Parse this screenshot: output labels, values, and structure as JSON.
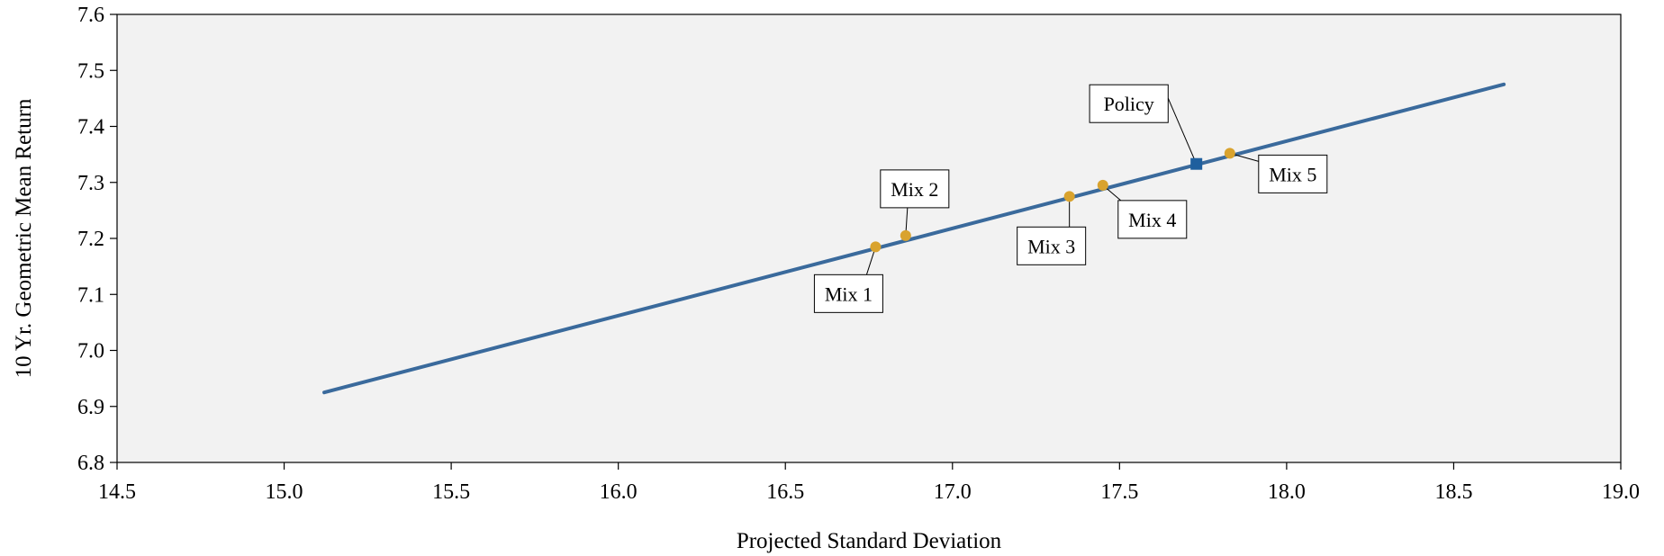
{
  "chart_data": {
    "type": "scatter",
    "title": "",
    "xlabel": "Projected Standard Deviation",
    "ylabel": "10 Yr. Geometric Mean Return",
    "xlim": [
      14.5,
      19.0
    ],
    "ylim": [
      6.8,
      7.6
    ],
    "x_ticks": [
      "14.5",
      "15.0",
      "15.5",
      "16.0",
      "16.5",
      "17.0",
      "17.5",
      "18.0",
      "18.5",
      "19.0"
    ],
    "y_ticks": [
      "6.8",
      "6.9",
      "7.0",
      "7.1",
      "7.2",
      "7.3",
      "7.4",
      "7.5",
      "7.6"
    ],
    "grid": false,
    "colors": {
      "plot_background": "#f2f2f2",
      "frontier_line": "#3a6a9c",
      "mix_marker": "#d9a32e",
      "policy_marker": "#1f5f9e"
    },
    "frontier_line": {
      "x": [
        15.12,
        18.65
      ],
      "y": [
        6.925,
        7.475
      ]
    },
    "points": [
      {
        "label": "Mix 1",
        "x": 16.77,
        "y": 7.185,
        "kind": "mix"
      },
      {
        "label": "Mix 2",
        "x": 16.86,
        "y": 7.205,
        "kind": "mix"
      },
      {
        "label": "Mix 3",
        "x": 17.35,
        "y": 7.275,
        "kind": "mix"
      },
      {
        "label": "Mix 4",
        "x": 17.45,
        "y": 7.295,
        "kind": "mix"
      },
      {
        "label": "Policy",
        "x": 17.73,
        "y": 7.333,
        "kind": "policy"
      },
      {
        "label": "Mix 5",
        "x": 17.83,
        "y": 7.352,
        "kind": "mix"
      }
    ]
  }
}
